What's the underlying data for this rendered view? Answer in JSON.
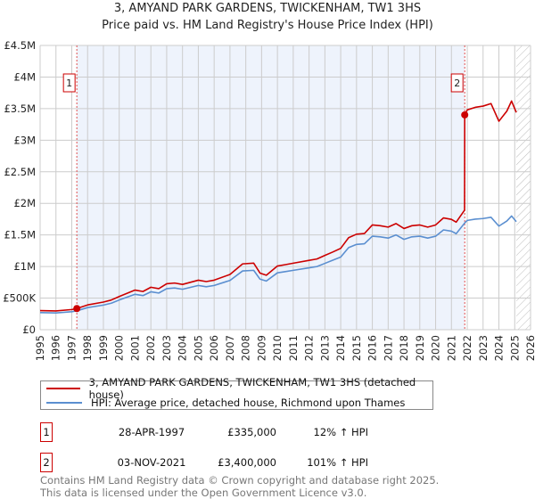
{
  "chart_data": {
    "type": "line",
    "title": "3, AMYAND PARK GARDENS, TWICKENHAM, TW1 3HS",
    "subtitle": "Price paid vs. HM Land Registry's House Price Index (HPI)",
    "xlim": [
      1995,
      2026
    ],
    "ylim": [
      0,
      4500000
    ],
    "x_ticks": [
      "1995",
      "1996",
      "1997",
      "1998",
      "1999",
      "2000",
      "2001",
      "2002",
      "2003",
      "2004",
      "2005",
      "2006",
      "2007",
      "2008",
      "2009",
      "2010",
      "2011",
      "2012",
      "2013",
      "2014",
      "2015",
      "2016",
      "2017",
      "2018",
      "2019",
      "2020",
      "2021",
      "2022",
      "2023",
      "2024",
      "2025",
      "2026"
    ],
    "y_ticks": [
      {
        "v": 0,
        "label": "£0"
      },
      {
        "v": 500000,
        "label": "£500K"
      },
      {
        "v": 1000000,
        "label": "£1M"
      },
      {
        "v": 1500000,
        "label": "£1.5M"
      },
      {
        "v": 2000000,
        "label": "£2M"
      },
      {
        "v": 2500000,
        "label": "£2.5M"
      },
      {
        "v": 3000000,
        "label": "£3M"
      },
      {
        "v": 3500000,
        "label": "£3.5M"
      },
      {
        "v": 4000000,
        "label": "£4M"
      },
      {
        "v": 4500000,
        "label": "£4.5M"
      }
    ],
    "grid": true,
    "series": [
      {
        "name": "3, AMYAND PARK GARDENS, TWICKENHAM, TW1 3HS (detached house)",
        "color": "#cc0000",
        "x": [
          1995,
          1996,
          1997,
          1997.32,
          1998,
          1999,
          1999.5,
          2000,
          2001,
          2001.5,
          2002,
          2002.5,
          2003,
          2003.5,
          2004,
          2005,
          2005.5,
          2006,
          2007,
          2007.8,
          2008.5,
          2008.9,
          2009.3,
          2010,
          2010.5,
          2011,
          2012,
          2012.5,
          2013,
          2013.5,
          2014,
          2014.5,
          2015,
          2015.5,
          2016,
          2016.5,
          2017,
          2017.5,
          2018,
          2018.5,
          2019,
          2019.5,
          2020,
          2020.5,
          2021,
          2021.3,
          2021.83,
          2021.84,
          2022,
          2022.5,
          2023,
          2023.5,
          2024,
          2024.5,
          2024.8,
          2025.1
        ],
        "y": [
          302,
          297,
          319,
          335,
          392,
          437,
          470,
          526,
          627,
          605,
          672,
          650,
          728,
          739,
          717,
          784,
          762,
          784,
          874,
          1042,
          1053,
          896,
          862,
          1008,
          1030,
          1053,
          1098,
          1120,
          1176,
          1230,
          1288,
          1456,
          1512,
          1523,
          1658,
          1646,
          1624,
          1680,
          1602,
          1646,
          1658,
          1624,
          1658,
          1770,
          1747,
          1702,
          1893,
          3400,
          3480,
          3520,
          3540,
          3580,
          3300,
          3460,
          3620,
          3440
        ],
        "y_unit": "thousand GBP"
      },
      {
        "name": "HPI: Average price, detached house, Richmond upon Thames",
        "color": "#5b8fd0",
        "x": [
          1995,
          1996,
          1997,
          1997.32,
          1998,
          1999,
          1999.5,
          2000,
          2001,
          2001.5,
          2002,
          2002.5,
          2003,
          2003.5,
          2004,
          2005,
          2005.5,
          2006,
          2007,
          2007.8,
          2008.5,
          2008.9,
          2009.3,
          2010,
          2010.5,
          2011,
          2012,
          2012.5,
          2013,
          2013.5,
          2014,
          2014.5,
          2015,
          2015.5,
          2016,
          2016.5,
          2017,
          2017.5,
          2018,
          2018.5,
          2019,
          2019.5,
          2020,
          2020.5,
          2021,
          2021.3,
          2021.84,
          2022,
          2022.5,
          2023,
          2023.5,
          2024,
          2024.5,
          2024.8,
          2025.1
        ],
        "y": [
          270,
          265,
          285,
          299,
          350,
          390,
          420,
          470,
          560,
          540,
          600,
          580,
          650,
          660,
          640,
          700,
          680,
          700,
          780,
          930,
          940,
          800,
          770,
          900,
          920,
          940,
          980,
          1000,
          1050,
          1100,
          1150,
          1300,
          1350,
          1360,
          1480,
          1470,
          1450,
          1500,
          1430,
          1470,
          1480,
          1450,
          1480,
          1580,
          1560,
          1520,
          1690,
          1730,
          1750,
          1760,
          1780,
          1640,
          1720,
          1800,
          1710
        ],
        "y_unit": "thousand GBP"
      }
    ],
    "sales": [
      {
        "label": "1",
        "x": 1997.32,
        "price": 335000,
        "date": "28-APR-1997",
        "price_label": "£335,000",
        "hpi_label": "12% ↑ HPI"
      },
      {
        "label": "2",
        "x": 2021.84,
        "price": 3400000,
        "date": "03-NOV-2021",
        "price_label": "£3,400,000",
        "hpi_label": "101% ↑ HPI"
      }
    ],
    "shaded_range": [
      1997.32,
      2021.84
    ],
    "hatched_from": 2025.1
  },
  "footer": [
    "Contains HM Land Registry data © Crown copyright and database right 2025.",
    "This data is licensed under the Open Government Licence v3.0."
  ]
}
